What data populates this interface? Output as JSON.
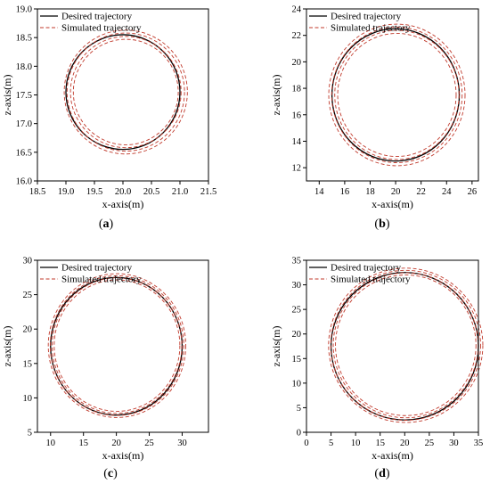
{
  "chart_data": [
    {
      "type": "line",
      "panel": "(a)",
      "panel_letter": "a",
      "xlabel": "x-axis(m)",
      "ylabel": "z-axis(m)",
      "xlim": [
        18.5,
        21.5
      ],
      "ylim": [
        16.0,
        19.0
      ],
      "xticks": [
        18.5,
        19.0,
        19.5,
        20.0,
        20.5,
        21.0,
        21.5
      ],
      "yticks": [
        16.0,
        16.5,
        17.0,
        17.5,
        18.0,
        18.5,
        19.0
      ],
      "tick_decimals": 1,
      "legend_position": "top-left",
      "series": [
        {
          "name": "Desired trajectory",
          "style": "solid",
          "color": "#000000",
          "center": [
            20.0,
            17.55
          ],
          "radius": 1.0,
          "rings": [
            0
          ]
        },
        {
          "name": "Simulated trajectory",
          "style": "dashed",
          "color": "#c0392b",
          "center": [
            20.05,
            17.55
          ],
          "radius": 1.0,
          "rings": [
            -0.08,
            -0.03,
            0.03,
            0.08
          ]
        }
      ]
    },
    {
      "type": "line",
      "panel": "(b)",
      "panel_letter": "b",
      "xlabel": "x-axis(m)",
      "ylabel": "z-axis(m)",
      "xlim": [
        13,
        26.5
      ],
      "ylim": [
        11,
        24
      ],
      "xticks": [
        14,
        16,
        18,
        20,
        22,
        24,
        26
      ],
      "yticks": [
        12,
        14,
        16,
        18,
        20,
        22,
        24
      ],
      "tick_decimals": 0,
      "legend_position": "top-left",
      "series": [
        {
          "name": "Desired trajectory",
          "style": "solid",
          "color": "#000000",
          "center": [
            20.0,
            17.5
          ],
          "radius": 5.0,
          "rings": [
            0
          ]
        },
        {
          "name": "Simulated trajectory",
          "style": "dashed",
          "color": "#c0392b",
          "center": [
            20.1,
            17.5
          ],
          "radius": 5.0,
          "rings": [
            -0.35,
            -0.12,
            0.12,
            0.35
          ]
        }
      ]
    },
    {
      "type": "line",
      "panel": "(c)",
      "panel_letter": "c",
      "xlabel": "x-axis(m)",
      "ylabel": "z-axis(m)",
      "xlim": [
        8,
        34
      ],
      "ylim": [
        5,
        30
      ],
      "xticks": [
        10,
        15,
        20,
        25,
        30
      ],
      "yticks": [
        5,
        10,
        15,
        20,
        25,
        30
      ],
      "tick_decimals": 0,
      "legend_position": "top-left",
      "series": [
        {
          "name": "Desired trajectory",
          "style": "solid",
          "color": "#000000",
          "center": [
            20.0,
            17.5
          ],
          "radius": 10.0,
          "rings": [
            0
          ]
        },
        {
          "name": "Simulated trajectory",
          "style": "dashed",
          "color": "#c0392b",
          "center": [
            20.1,
            17.6
          ],
          "radius": 10.0,
          "rings": [
            -0.45,
            -0.15,
            0.15,
            0.45
          ]
        }
      ]
    },
    {
      "type": "line",
      "panel": "(d)",
      "panel_letter": "d",
      "xlabel": "x-axis(m)",
      "ylabel": "z-axis(m)",
      "xlim": [
        0,
        35
      ],
      "ylim": [
        0,
        35
      ],
      "xticks": [
        0,
        5,
        10,
        15,
        20,
        25,
        30,
        35
      ],
      "yticks": [
        0,
        5,
        10,
        15,
        20,
        25,
        30,
        35
      ],
      "tick_decimals": 0,
      "legend_position": "top-left",
      "series": [
        {
          "name": "Desired trajectory",
          "style": "solid",
          "color": "#000000",
          "center": [
            20.0,
            17.5
          ],
          "radius": 15.0,
          "rings": [
            0
          ]
        },
        {
          "name": "Simulated trajectory",
          "style": "dashed",
          "color": "#c0392b",
          "center": [
            20.2,
            17.7
          ],
          "radius": 15.0,
          "rings": [
            -0.7,
            -0.25,
            0.25,
            0.7
          ]
        }
      ]
    }
  ]
}
